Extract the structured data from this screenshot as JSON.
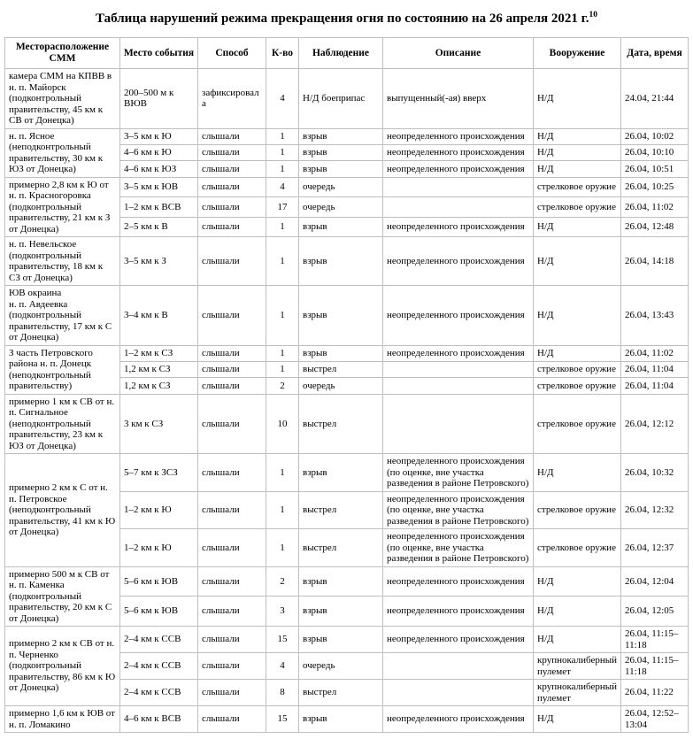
{
  "title": {
    "text": "Таблица нарушений режима прекращения огня по состоянию на 26 апреля 2021 г.",
    "footnote_ref": "10"
  },
  "table": {
    "headers": [
      "Месторасположение СММ",
      "Место события",
      "Способ",
      "К-во",
      "Наблюдение",
      "Описание",
      "Вооружение",
      "Дата, время"
    ],
    "groups": [
      {
        "location": "камера СММ на КПВВ в н. п. Майорск (подконтрольный правительству, 45 км к СВ от Донецка)",
        "rows": [
          [
            "200–500 м к ВЮВ",
            "зафиксировала",
            "4",
            "Н/Д боеприпас",
            "выпущенный(-ая) вверх",
            "Н/Д",
            "24.04, 21:44"
          ]
        ]
      },
      {
        "location": "н. п. Ясное (неподконтрольный правительству, 30 км к ЮЗ от Донецка)",
        "rows": [
          [
            "3–5 км к Ю",
            "слышали",
            "1",
            "взрыв",
            "неопределенного происхождения",
            "Н/Д",
            "26.04, 10:02"
          ],
          [
            "4–6 км к Ю",
            "слышали",
            "1",
            "взрыв",
            "неопределенного происхождения",
            "Н/Д",
            "26.04, 10:10"
          ],
          [
            "4–6 км к ЮЗ",
            "слышали",
            "1",
            "взрыв",
            "неопределенного происхождения",
            "Н/Д",
            "26.04, 10:51"
          ]
        ]
      },
      {
        "location": "примерно 2,8 км к Ю от н. п. Красногоровка (подконтрольный правительству, 21 км к З от Донецка)",
        "rows": [
          [
            "3–5 км к ЮВ",
            "слышали",
            "4",
            "очередь",
            "",
            "стрелковое оружие",
            "26.04, 10:25"
          ],
          [
            "1–2 км к ВСВ",
            "слышали",
            "17",
            "очередь",
            "",
            "стрелковое оружие",
            "26.04, 11:02"
          ],
          [
            "2–5 км к В",
            "слышали",
            "1",
            "взрыв",
            "неопределенного происхождения",
            "Н/Д",
            "26.04, 12:48"
          ]
        ]
      },
      {
        "location": "н. п. Невельское (подконтрольный правительству, 18 км к СЗ от Донецка)",
        "rows": [
          [
            "3–5 км к З",
            "слышали",
            "1",
            "взрыв",
            "неопределенного происхождения",
            "Н/Д",
            "26.04, 14:18"
          ]
        ]
      },
      {
        "location": "ЮВ окраина\nн. п. Авдеевка (подконтрольный правительству, 17 км к С от Донецка)",
        "rows": [
          [
            "3–4 км к В",
            "слышали",
            "1",
            "взрыв",
            "неопределенного происхождения",
            "Н/Д",
            "26.04, 13:43"
          ]
        ]
      },
      {
        "location": "З часть Петровского района н. п. Донецк (неподконтрольный правительству)",
        "rows": [
          [
            "1–2 км к СЗ",
            "слышали",
            "1",
            "взрыв",
            "неопределенного происхождения",
            "Н/Д",
            "26.04, 11:02"
          ],
          [
            "1,2 км к СЗ",
            "слышали",
            "1",
            "выстрел",
            "",
            "стрелковое оружие",
            "26.04, 11:04"
          ],
          [
            "1,2 км к СЗ",
            "слышали",
            "2",
            "очередь",
            "",
            "стрелковое оружие",
            "26.04, 11:04"
          ]
        ]
      },
      {
        "location": "примерно 1 км к СВ от н. п. Сигнальное (неподконтрольный правительству, 23 км к ЮЗ от Донецка)",
        "rows": [
          [
            "3 км к СЗ",
            "слышали",
            "10",
            "выстрел",
            "",
            "стрелковое оружие",
            "26.04, 12:12"
          ]
        ]
      },
      {
        "location": "примерно 2 км к С от н. п. Петровское (неподконтрольный правительству, 41 км к Ю от Донецка)",
        "rows": [
          [
            "5–7 км к ЗСЗ",
            "слышали",
            "1",
            "взрыв",
            "неопределенного происхождения (по оценке, вне участка разведения в районе Петровского)",
            "Н/Д",
            "26.04, 10:32"
          ],
          [
            "1–2 км к Ю",
            "слышали",
            "1",
            "выстрел",
            "неопределенного происхождения (по оценке, вне участка разведения в районе Петровского)",
            "стрелковое оружие",
            "26.04, 12:32"
          ],
          [
            "1–2 км к Ю",
            "слышали",
            "1",
            "выстрел",
            "неопределенного происхождения (по оценке, вне участка разведения в районе Петровского)",
            "стрелковое оружие",
            "26.04, 12:37"
          ]
        ]
      },
      {
        "location": "примерно 500 м к СВ от н. п. Каменка (подконтрольный правительству, 20 км к С от Донецка)",
        "rows": [
          [
            "5–6 км к ЮВ",
            "слышали",
            "2",
            "взрыв",
            "неопределенного происхождения",
            "Н/Д",
            "26.04, 12:04"
          ],
          [
            "5–6 км к ЮВ",
            "слышали",
            "3",
            "взрыв",
            "неопределенного происхождения",
            "Н/Д",
            "26.04, 12:05"
          ]
        ]
      },
      {
        "location": "примерно 2 км к СВ от н. п. Черненко (подконтрольный правительству, 86 км к Ю от Донецка)",
        "rows": [
          [
            "2–4 км к ССВ",
            "слышали",
            "15",
            "взрыв",
            "неопределенного происхождения",
            "Н/Д",
            "26.04, 11:15–11:18"
          ],
          [
            "2–4 км к ССВ",
            "слышали",
            "4",
            "очередь",
            "",
            "крупнокалиберный пулемет",
            "26.04, 11:15–11:18"
          ],
          [
            "2–4 км к ССВ",
            "слышали",
            "8",
            "выстрел",
            "",
            "крупнокалиберный пулемет",
            "26.04, 11:22"
          ]
        ]
      },
      {
        "location": "примерно 1,6 км к ЮВ от н. п. Ломакино",
        "rows": [
          [
            "4–6 км к ВСВ",
            "слышали",
            "15",
            "взрыв",
            "неопределенного происхождения",
            "Н/Д",
            "26.04, 12:52–13:04"
          ]
        ]
      }
    ]
  }
}
